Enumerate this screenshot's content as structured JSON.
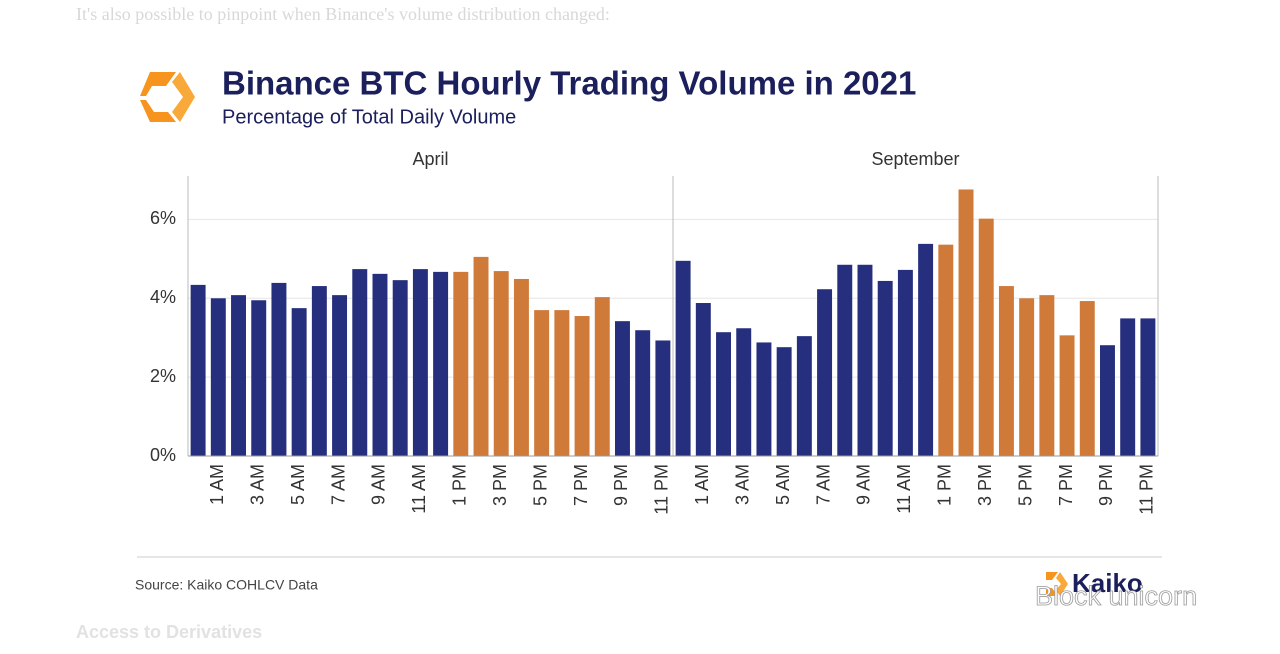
{
  "article": {
    "lead": "It's also possible to pinpoint when Binance's volume distribution changed:",
    "heading": "Access to Derivatives"
  },
  "watermark": "Block unicorn",
  "chart_data": {
    "type": "bar",
    "title": "Binance BTC Hourly Trading Volume in 2021",
    "subtitle": "Percentage of Total Daily Volume",
    "source": "Source: Kaiko COHLCV Data",
    "brand": "Kaiko",
    "categories": [
      null,
      "1 AM",
      null,
      "3 AM",
      null,
      "5 AM",
      null,
      "7 AM",
      null,
      "9 AM",
      null,
      "11 AM",
      null,
      "1 PM",
      null,
      "3 PM",
      null,
      "5 PM",
      null,
      "7 PM",
      null,
      "9 PM",
      null,
      "11 PM"
    ],
    "ylim": [
      0,
      7
    ],
    "yticks": [
      {
        "value": 0,
        "label": "0%"
      },
      {
        "value": 2,
        "label": "2%"
      },
      {
        "value": 4,
        "label": "4%"
      },
      {
        "value": 6,
        "label": "6%"
      }
    ],
    "grid": true,
    "panels": [
      {
        "title": "April",
        "values": [
          4.34,
          4.0,
          4.08,
          3.95,
          4.39,
          3.75,
          4.31,
          4.08,
          4.74,
          4.62,
          4.46,
          4.74,
          4.67,
          4.67,
          5.05,
          4.69,
          4.49,
          3.7,
          3.7,
          3.55,
          4.03,
          3.42,
          3.19,
          2.93
        ],
        "colors": [
          "#262f7e",
          "#262f7e",
          "#262f7e",
          "#262f7e",
          "#262f7e",
          "#262f7e",
          "#262f7e",
          "#262f7e",
          "#262f7e",
          "#262f7e",
          "#262f7e",
          "#262f7e",
          "#262f7e",
          "#d07a3a",
          "#d07a3a",
          "#d07a3a",
          "#d07a3a",
          "#d07a3a",
          "#d07a3a",
          "#d07a3a",
          "#d07a3a",
          "#262f7e",
          "#262f7e",
          "#262f7e"
        ]
      },
      {
        "title": "September",
        "values": [
          4.95,
          3.88,
          3.14,
          3.24,
          2.88,
          2.76,
          3.04,
          4.23,
          4.85,
          4.85,
          4.44,
          4.72,
          5.38,
          5.36,
          6.76,
          6.02,
          4.31,
          4.0,
          4.08,
          3.06,
          3.93,
          2.81,
          3.49,
          3.49
        ],
        "colors": [
          "#262f7e",
          "#262f7e",
          "#262f7e",
          "#262f7e",
          "#262f7e",
          "#262f7e",
          "#262f7e",
          "#262f7e",
          "#262f7e",
          "#262f7e",
          "#262f7e",
          "#262f7e",
          "#262f7e",
          "#d07a3a",
          "#d07a3a",
          "#d07a3a",
          "#d07a3a",
          "#d07a3a",
          "#d07a3a",
          "#d07a3a",
          "#d07a3a",
          "#262f7e",
          "#262f7e",
          "#262f7e"
        ]
      }
    ]
  }
}
